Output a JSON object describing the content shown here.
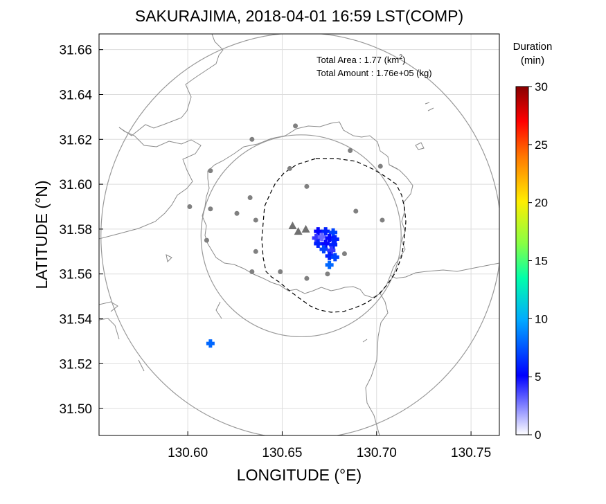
{
  "chart_data": {
    "type": "scatter",
    "title": "SAKURAJIMA, 2018-04-01 16:59 LST(COMP)",
    "xlabel": "LONGITUDE (°E)",
    "ylabel": "LATITUDE (°N)",
    "xlim": [
      130.553,
      130.765
    ],
    "ylim": [
      31.488,
      31.667
    ],
    "xticks": [
      "130.60",
      "130.65",
      "130.70",
      "130.75"
    ],
    "yticks": [
      "31.50",
      "31.52",
      "31.54",
      "31.56",
      "31.58",
      "31.60",
      "31.62",
      "31.64",
      "31.66"
    ],
    "grid": true,
    "info": {
      "area_prefix": "Total Area   : 1.77 (km",
      "area_sup": "2",
      "area_suffix": ")",
      "amount": "Total Amount : 1.76e+05 (kg)"
    },
    "colorbar": {
      "title_line1": "Duration",
      "title_line2": "(min)",
      "min": 0,
      "max": 30,
      "ticks": [
        "0",
        "5",
        "10",
        "15",
        "20",
        "25",
        "30"
      ]
    },
    "range_circles": [
      {
        "center": [
          130.66,
          31.577
        ],
        "radius_lon": 0.053,
        "radius_lat": 0.045
      },
      {
        "center": [
          130.66,
          31.577
        ],
        "radius_lon": 0.106,
        "radius_lat": 0.0905
      }
    ],
    "stations": [
      [
        130.657,
        31.626
      ],
      [
        130.634,
        31.62
      ],
      [
        130.612,
        31.606
      ],
      [
        130.654,
        31.607
      ],
      [
        130.686,
        31.615
      ],
      [
        130.702,
        31.608
      ],
      [
        130.601,
        31.59
      ],
      [
        130.612,
        31.589
      ],
      [
        130.633,
        31.594
      ],
      [
        130.663,
        31.599
      ],
      [
        130.626,
        31.587
      ],
      [
        130.636,
        31.584
      ],
      [
        130.689,
        31.588
      ],
      [
        130.703,
        31.584
      ],
      [
        130.61,
        31.575
      ],
      [
        130.636,
        31.57
      ],
      [
        130.683,
        31.569
      ],
      [
        130.634,
        31.561
      ],
      [
        130.649,
        31.561
      ],
      [
        130.663,
        31.558
      ],
      [
        130.674,
        31.56
      ]
    ],
    "vents": [
      [
        130.6555,
        31.5815
      ],
      [
        130.6585,
        31.579
      ],
      [
        130.6625,
        31.58
      ]
    ],
    "fall_cells": [
      {
        "lon": 130.669,
        "lat": 31.579,
        "duration": 5
      },
      {
        "lon": 130.673,
        "lat": 31.579,
        "duration": 6
      },
      {
        "lon": 130.677,
        "lat": 31.5785,
        "duration": 7
      },
      {
        "lon": 130.668,
        "lat": 31.576,
        "duration": 4
      },
      {
        "lon": 130.671,
        "lat": 31.5765,
        "duration": 3
      },
      {
        "lon": 130.675,
        "lat": 31.576,
        "duration": 5
      },
      {
        "lon": 130.678,
        "lat": 31.5755,
        "duration": 6
      },
      {
        "lon": 130.669,
        "lat": 31.5735,
        "duration": 6
      },
      {
        "lon": 130.673,
        "lat": 31.5735,
        "duration": 5
      },
      {
        "lon": 130.677,
        "lat": 31.573,
        "duration": 6
      },
      {
        "lon": 130.672,
        "lat": 31.571,
        "duration": 7
      },
      {
        "lon": 130.676,
        "lat": 31.5705,
        "duration": 4
      },
      {
        "lon": 130.675,
        "lat": 31.568,
        "duration": 6
      },
      {
        "lon": 130.678,
        "lat": 31.5675,
        "duration": 7
      },
      {
        "lon": 130.675,
        "lat": 31.564,
        "duration": 8
      },
      {
        "lon": 130.612,
        "lat": 31.529,
        "duration": 8
      }
    ]
  }
}
